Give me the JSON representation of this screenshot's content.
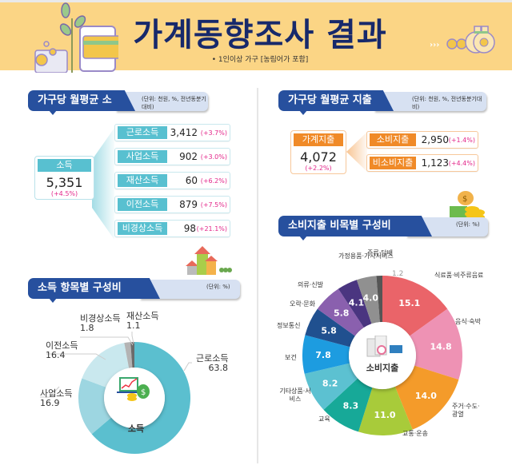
{
  "banner": {
    "title": "가계동향조사 결과",
    "subtitle": "• 1인이상 가구 [농림어가 포함]",
    "bg_color": "#fbd585",
    "title_color": "#17296b"
  },
  "income": {
    "header": "가구당 월평균 소득",
    "unit": "(단위: 천원, %, 전년동분기대비)",
    "total": {
      "label": "소득",
      "value": "5,351",
      "change": "(+4.5%)"
    },
    "items": [
      {
        "label": "근로소득",
        "value": "3,412",
        "change": "(+3.7%)"
      },
      {
        "label": "사업소득",
        "value": "902",
        "change": "(+3.0%)"
      },
      {
        "label": "재산소득",
        "value": "60",
        "change": "(+6.2%)"
      },
      {
        "label": "이전소득",
        "value": "879",
        "change": "(+7.5%)"
      },
      {
        "label": "비경상소득",
        "value": "98",
        "change": "(+21.1%)"
      }
    ]
  },
  "expenditure": {
    "header": "가구당 월평균 지출",
    "unit": "(단위: 천원, %, 전년동분기대비)",
    "total": {
      "label": "가계지출",
      "value": "4,072",
      "change": "(+2.2%)"
    },
    "items": [
      {
        "label": "소비지출",
        "value": "2,950",
        "change": "(+1.4%)"
      },
      {
        "label": "비소비지출",
        "value": "1,123",
        "change": "(+4.4%)"
      }
    ]
  },
  "income_composition": {
    "header": "소득 항목별 구성비",
    "unit": "(단위: %)",
    "center_label": "소득"
  },
  "consumption_composition": {
    "header": "소비지출 비목별 구성비",
    "unit": "(단위: %)",
    "center_label": "소비지출"
  },
  "chart_data": [
    {
      "type": "pie",
      "title": "소득 항목별 구성비",
      "unit": "%",
      "center_label": "소득",
      "categories": [
        "근로소득",
        "사업소득",
        "이전소득",
        "비경상소득",
        "재산소득"
      ],
      "values": [
        63.8,
        16.9,
        16.4,
        1.8,
        1.1
      ],
      "colors": [
        "#5bbfcf",
        "#9dd6e1",
        "#c9e8ee",
        "#b3b3b3",
        "#6b6b6b"
      ]
    },
    {
      "type": "pie",
      "title": "소비지출 비목별 구성비",
      "unit": "%",
      "center_label": "소비지출",
      "categories": [
        "식료품·비주류음료",
        "음식·숙박",
        "주거·수도·광열",
        "교통·운송",
        "교육",
        "기타상품·서비스",
        "보건",
        "정보통신",
        "오락·문화",
        "의류·신발",
        "가정용품·가사서비스",
        "주류·담배"
      ],
      "values": [
        15.1,
        14.8,
        14.0,
        11.0,
        8.3,
        8.2,
        7.8,
        5.8,
        5.8,
        4.1,
        4.0,
        1.2
      ],
      "colors": [
        "#ea6469",
        "#ee92b4",
        "#f49b2a",
        "#a8cb3a",
        "#17a998",
        "#5cc1d1",
        "#1d9ce0",
        "#20508f",
        "#8a60ae",
        "#4a3580",
        "#909090",
        "#555555"
      ]
    }
  ]
}
